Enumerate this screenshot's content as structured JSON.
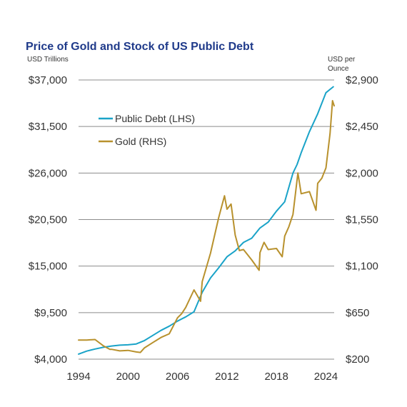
{
  "chart_data": {
    "type": "line",
    "title": "Price of Gold and Stock of US Public Debt",
    "left_axis_unit": "USD Trillions",
    "right_axis_unit_line1": "USD per",
    "right_axis_unit_line2": "Ounce",
    "x_ticks": [
      "1994",
      "2000",
      "2006",
      "2012",
      "2018",
      "2024"
    ],
    "y_left_ticks": [
      "$4,000",
      "$9,500",
      "$15,000",
      "$20,500",
      "$26,000",
      "$31,500",
      "$37,000"
    ],
    "y_right_ticks": [
      "$200",
      "$650",
      "$1,100",
      "$1,550",
      "$2,000",
      "$2,450",
      "$2,900"
    ],
    "xlim": [
      1994,
      2025
    ],
    "y_left_lim": [
      4000,
      37000
    ],
    "y_right_lim": [
      200,
      2900
    ],
    "grid": "horizontal",
    "legend_position": "top-left",
    "series": [
      {
        "name": "Public Debt (LHS)",
        "axis": "left",
        "color": "#1aa3c8",
        "x": [
          1994,
          1995,
          1996,
          1997,
          1998,
          1999,
          2000,
          2001,
          2002,
          2003,
          2004,
          2005,
          2006,
          2007,
          2008,
          2009,
          2010,
          2011,
          2012,
          2013,
          2014,
          2015,
          2016,
          2017,
          2018,
          2019,
          2020,
          2020.5,
          2021,
          2022,
          2023,
          2024,
          2024.9
        ],
        "y": [
          4600,
          4950,
          5200,
          5400,
          5550,
          5650,
          5700,
          5800,
          6200,
          6800,
          7400,
          7900,
          8500,
          9000,
          9600,
          11900,
          13600,
          14800,
          16100,
          16800,
          17800,
          18300,
          19500,
          20200,
          21500,
          22600,
          26000,
          27000,
          28400,
          30900,
          33000,
          35500,
          36200
        ]
      },
      {
        "name": "Gold (RHS)",
        "axis": "right",
        "color": "#b8912d",
        "x": [
          1994,
          1995,
          1996,
          1997,
          1997.8,
          1998,
          1999,
          2000,
          2001,
          2001.5,
          2002,
          2003,
          2004,
          2005,
          2006,
          2006.5,
          2007,
          2008,
          2008.8,
          2009,
          2010,
          2011,
          2011.7,
          2012,
          2012.5,
          2013,
          2013.5,
          2014,
          2015,
          2015.9,
          2016,
          2016.5,
          2017,
          2018,
          2018.7,
          2019,
          2019.5,
          2020,
          2020.6,
          2021,
          2022,
          2022.8,
          2023,
          2023.5,
          2024,
          2024.5,
          2024.8,
          2025
        ],
        "y": [
          385,
          385,
          390,
          330,
          295,
          295,
          280,
          285,
          270,
          265,
          310,
          360,
          410,
          445,
          600,
          640,
          700,
          870,
          760,
          950,
          1225,
          1570,
          1780,
          1650,
          1700,
          1400,
          1250,
          1260,
          1160,
          1060,
          1230,
          1330,
          1260,
          1270,
          1190,
          1390,
          1480,
          1600,
          2000,
          1800,
          1820,
          1640,
          1900,
          1950,
          2050,
          2380,
          2700,
          2650
        ]
      }
    ]
  }
}
